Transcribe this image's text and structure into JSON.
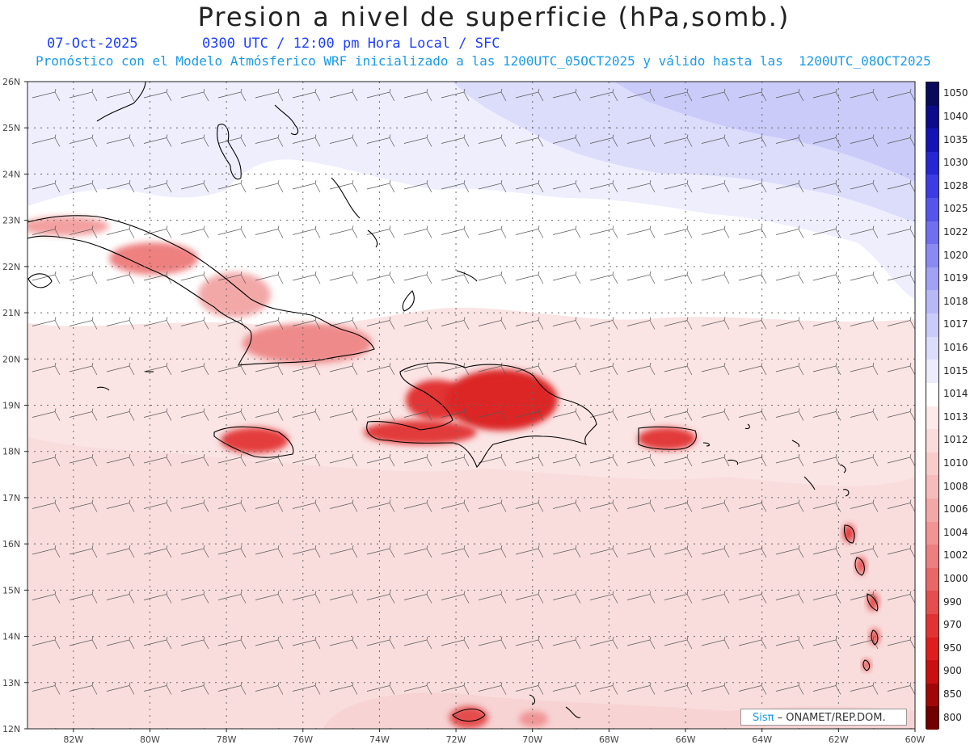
{
  "header": {
    "title": "Presion a nivel de superficie (hPa,somb.)",
    "date": "07-Oct-2025",
    "time_info": "0300 UTC / 12:00 pm Hora Local / SFC",
    "model_info": "Pronóstico con el Modelo Atmósferico WRF inicializado a las 1200UTC_05OCT2025 y válido hasta las  1200UTC_08OCT2025"
  },
  "map": {
    "lat_labels": [
      "26N",
      "25N",
      "24N",
      "23N",
      "22N",
      "21N",
      "20N",
      "19N",
      "18N",
      "17N",
      "16N",
      "15N",
      "14N",
      "13N",
      "12N"
    ],
    "lon_labels": [
      "82W",
      "80W",
      "78W",
      "76W",
      "74W",
      "72W",
      "70W",
      "68W",
      "66W",
      "64W",
      "62W",
      "60W"
    ],
    "lat_range": [
      12,
      26
    ],
    "lon_range": [
      -83.2,
      -60
    ]
  },
  "legend": {
    "levels": [
      "1050",
      "1040",
      "1035",
      "1030",
      "1028",
      "1025",
      "1022",
      "1020",
      "1019",
      "1018",
      "1017",
      "1016",
      "1015",
      "1014",
      "1013",
      "1012",
      "1010",
      "1008",
      "1006",
      "1004",
      "1002",
      "1000",
      "990",
      "970",
      "950",
      "900",
      "850",
      "800"
    ],
    "colors": [
      "#0a0a5a",
      "#0c0c8a",
      "#1414b4",
      "#2626d2",
      "#3c3ce2",
      "#5555ea",
      "#7070ee",
      "#8a8af2",
      "#a2a2f5",
      "#b8b8f7",
      "#cbcbf9",
      "#dcdcfb",
      "#ececfd",
      "#ffffff",
      "#fdeaea",
      "#fbdcdc",
      "#f9cccc",
      "#f6bcbc",
      "#f3a8a8",
      "#f09494",
      "#ec7f7f",
      "#e86868",
      "#e44e4e",
      "#e03434",
      "#dc1e1e",
      "#c81010",
      "#a00808",
      "#700000"
    ]
  },
  "credit": {
    "brand": "Sisπ",
    "text": " – ONAMET/REP.DOM."
  }
}
